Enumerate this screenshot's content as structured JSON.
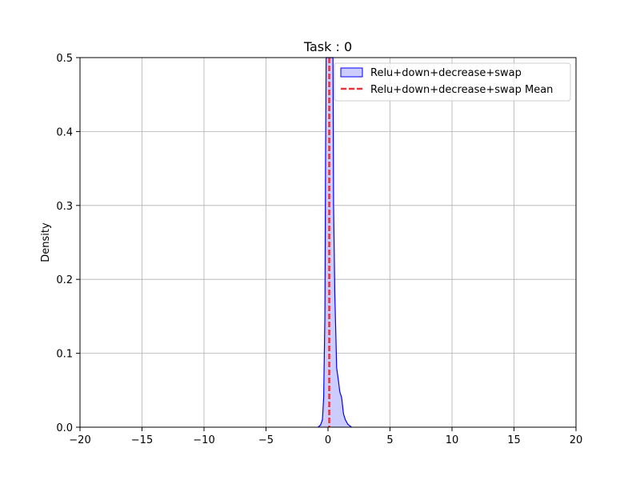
{
  "chart_data": {
    "type": "area",
    "title": "Task : 0",
    "xlabel": "",
    "ylabel": "Density",
    "xlim": [
      -20,
      20
    ],
    "ylim": [
      0,
      0.5
    ],
    "xticks": [
      -20,
      -15,
      -10,
      -5,
      0,
      5,
      10,
      15,
      20
    ],
    "xtick_labels": [
      "−20",
      "−15",
      "−10",
      "−5",
      "0",
      "5",
      "10",
      "15",
      "20"
    ],
    "yticks": [
      0.0,
      0.1,
      0.2,
      0.3,
      0.4,
      0.5
    ],
    "ytick_labels": [
      "0.0",
      "0.1",
      "0.2",
      "0.3",
      "0.4",
      "0.5"
    ],
    "grid": true,
    "legend_position": "top-right",
    "series": [
      {
        "name": "Relu+down+decrease+swap",
        "kind": "density",
        "color": "#0000ff",
        "fill": "#ccccff",
        "points": [
          [
            -0.8,
            0.0
          ],
          [
            -0.6,
            0.003
          ],
          [
            -0.45,
            0.01
          ],
          [
            -0.35,
            0.04
          ],
          [
            -0.25,
            0.15
          ],
          [
            -0.2,
            0.35
          ],
          [
            -0.15,
            0.5
          ],
          [
            0.4,
            0.5
          ],
          [
            0.45,
            0.3
          ],
          [
            0.55,
            0.18
          ],
          [
            0.7,
            0.08
          ],
          [
            0.85,
            0.062
          ],
          [
            0.95,
            0.048
          ],
          [
            1.1,
            0.04
          ],
          [
            1.25,
            0.018
          ],
          [
            1.4,
            0.01
          ],
          [
            1.6,
            0.004
          ],
          [
            1.9,
            0.0
          ]
        ]
      },
      {
        "name": "Relu+down+decrease+swap Mean",
        "kind": "vline",
        "color": "#e8323c",
        "x": 0.1
      }
    ]
  }
}
